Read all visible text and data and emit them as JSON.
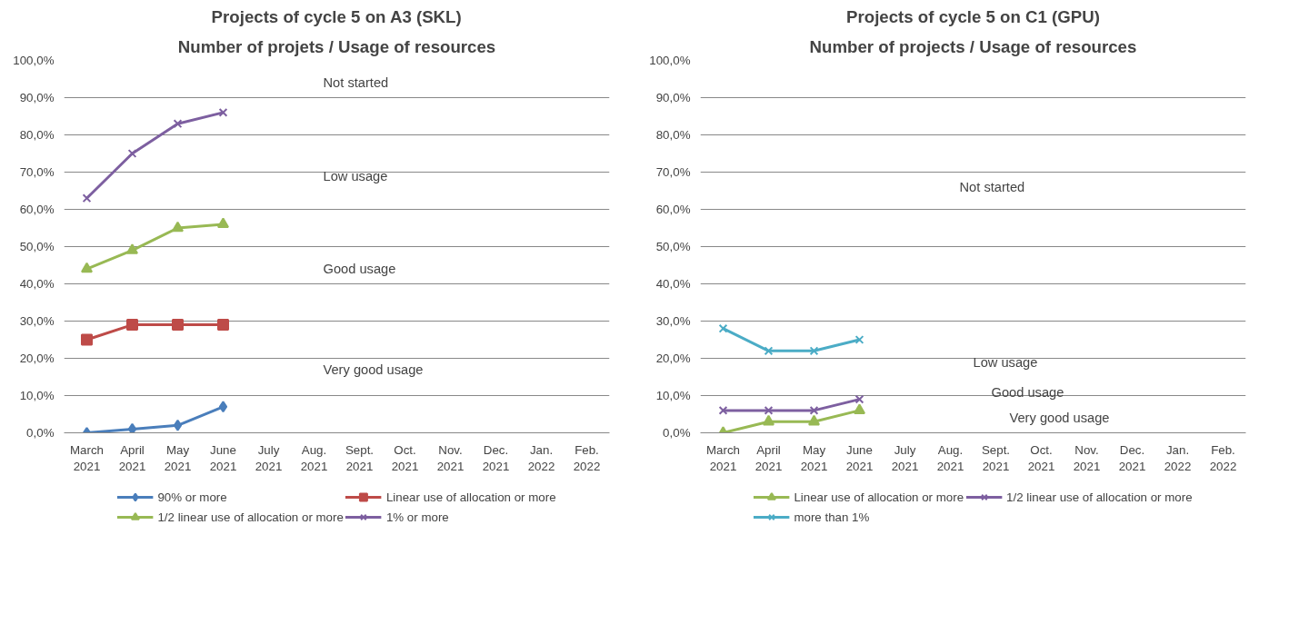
{
  "chart_data": [
    {
      "type": "line",
      "title": "Projects of cycle 5 on A3 (SKL)",
      "subtitle": "Number of projets / Usage of resources",
      "categories": [
        "March 2021",
        "April 2021",
        "May 2021",
        "June 2021",
        "July 2021",
        "Aug. 2021",
        "Sept. 2021",
        "Oct. 2021",
        "Nov. 2021",
        "Dec. 2021",
        "Jan. 2022",
        "Feb. 2022"
      ],
      "series": [
        {
          "name": "90% or more",
          "color": "#4a7ebb",
          "marker": "diamond",
          "values": [
            0,
            1,
            2,
            7,
            null,
            null,
            null,
            null,
            null,
            null,
            null,
            null
          ]
        },
        {
          "name": "Linear use of allocation or more",
          "color": "#be4b48",
          "marker": "square",
          "values": [
            25,
            29,
            29,
            29,
            null,
            null,
            null,
            null,
            null,
            null,
            null,
            null
          ]
        },
        {
          "name": "1/2 linear use of allocation or more",
          "color": "#98b954",
          "marker": "triangle",
          "values": [
            44,
            49,
            55,
            56,
            null,
            null,
            null,
            null,
            null,
            null,
            null,
            null
          ]
        },
        {
          "name": "1% or more",
          "color": "#7d5fa0",
          "marker": "cross",
          "values": [
            63,
            75,
            83,
            86,
            null,
            null,
            null,
            null,
            null,
            null,
            null,
            null
          ]
        }
      ],
      "ylim": [
        0,
        100
      ],
      "yticks": [
        {
          "value": 0,
          "label": "0,0%"
        },
        {
          "value": 10,
          "label": "10,0%"
        },
        {
          "value": 20,
          "label": "20,0%"
        },
        {
          "value": 30,
          "label": "30,0%"
        },
        {
          "value": 40,
          "label": "40,0%"
        },
        {
          "value": 50,
          "label": "50,0%"
        },
        {
          "value": 60,
          "label": "60,0%"
        },
        {
          "value": 70,
          "label": "70,0%"
        },
        {
          "value": 80,
          "label": "80,0%"
        },
        {
          "value": 90,
          "label": "90,0%"
        },
        {
          "value": 100,
          "label": "100,0%"
        }
      ],
      "grid": "y",
      "legend": "bottom",
      "annotations": [
        "Not started",
        "Low usage",
        "Good usage",
        "Very good usage"
      ]
    },
    {
      "type": "line",
      "title": "Projects of cycle 5 on C1 (GPU)",
      "subtitle": "Number of projects / Usage of resources",
      "categories": [
        "March 2021",
        "April 2021",
        "May 2021",
        "June 2021",
        "July 2021",
        "Aug. 2021",
        "Sept. 2021",
        "Oct. 2021",
        "Nov. 2021",
        "Dec. 2021",
        "Jan. 2022",
        "Feb. 2022"
      ],
      "series": [
        {
          "name": "Linear use of allocation or more",
          "color": "#98b954",
          "marker": "triangle",
          "values": [
            0,
            3,
            3,
            6,
            null,
            null,
            null,
            null,
            null,
            null,
            null,
            null
          ]
        },
        {
          "name": "1/2 linear use of allocation or more",
          "color": "#7d5fa0",
          "marker": "cross",
          "values": [
            6,
            6,
            6,
            9,
            null,
            null,
            null,
            null,
            null,
            null,
            null,
            null
          ]
        },
        {
          "name": "more than 1%",
          "color": "#4bacc6",
          "marker": "cross",
          "values": [
            28,
            22,
            22,
            25,
            null,
            null,
            null,
            null,
            null,
            null,
            null,
            null
          ]
        }
      ],
      "ylim": [
        0,
        100
      ],
      "yticks": [
        {
          "value": 0,
          "label": "0,0%"
        },
        {
          "value": 10,
          "label": "10,0%"
        },
        {
          "value": 20,
          "label": "20,0%"
        },
        {
          "value": 30,
          "label": "30,0%"
        },
        {
          "value": 40,
          "label": "40,0%"
        },
        {
          "value": 50,
          "label": "50,0%"
        },
        {
          "value": 60,
          "label": "60,0%"
        },
        {
          "value": 70,
          "label": "70,0%"
        },
        {
          "value": 80,
          "label": "80,0%"
        },
        {
          "value": 90,
          "label": "90,0%"
        },
        {
          "value": 100,
          "label": "100,0%"
        }
      ],
      "grid": "y",
      "legend": "bottom",
      "annotations": [
        "Not started",
        "Low usage",
        "Good usage",
        "Very good usage"
      ]
    }
  ]
}
